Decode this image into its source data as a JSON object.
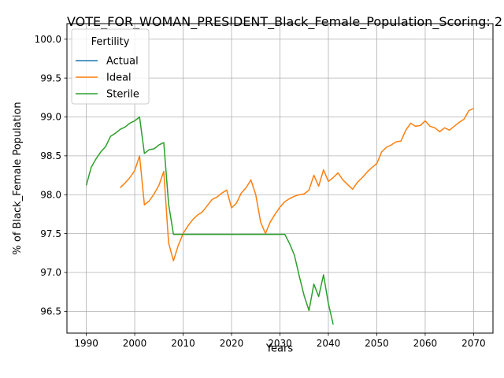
{
  "chart_data": {
    "type": "line",
    "title": "VOTE_FOR_WOMAN_PRESIDENT_Black_Female_Population_Scoring: 2",
    "xlabel": "Years",
    "ylabel": "% of Black_Female Population",
    "xlim": [
      1986,
      2074
    ],
    "ylim": [
      96.22,
      100.2
    ],
    "x_ticks": [
      1990,
      2000,
      2010,
      2020,
      2030,
      2040,
      2050,
      2060,
      2070
    ],
    "y_ticks": [
      96.5,
      97.0,
      97.5,
      98.0,
      98.5,
      99.0,
      99.5,
      100.0
    ],
    "grid": true,
    "legend": {
      "title": "Fertility",
      "placement": "upper-left"
    },
    "series": [
      {
        "name": "Actual",
        "color": "#1f77b4",
        "points": []
      },
      {
        "name": "Ideal",
        "color": "#ff7f0e",
        "points": [
          [
            1997,
            98.09
          ],
          [
            1998,
            98.15
          ],
          [
            1999,
            98.22
          ],
          [
            2000,
            98.31
          ],
          [
            2001,
            98.5
          ],
          [
            2002,
            97.87
          ],
          [
            2003,
            97.92
          ],
          [
            2004,
            98.01
          ],
          [
            2005,
            98.12
          ],
          [
            2006,
            98.3
          ],
          [
            2007,
            97.38
          ],
          [
            2008,
            97.15
          ],
          [
            2009,
            97.35
          ],
          [
            2010,
            97.5
          ],
          [
            2011,
            97.6
          ],
          [
            2012,
            97.68
          ],
          [
            2013,
            97.74
          ],
          [
            2014,
            97.78
          ],
          [
            2015,
            97.86
          ],
          [
            2016,
            97.94
          ],
          [
            2017,
            97.97
          ],
          [
            2018,
            98.02
          ],
          [
            2019,
            98.06
          ],
          [
            2020,
            97.83
          ],
          [
            2021,
            97.89
          ],
          [
            2022,
            98.02
          ],
          [
            2023,
            98.09
          ],
          [
            2024,
            98.19
          ],
          [
            2025,
            98.0
          ],
          [
            2026,
            97.65
          ],
          [
            2027,
            97.5
          ],
          [
            2028,
            97.65
          ],
          [
            2029,
            97.75
          ],
          [
            2030,
            97.84
          ],
          [
            2031,
            97.91
          ],
          [
            2032,
            97.95
          ],
          [
            2033,
            97.98
          ],
          [
            2034,
            98.0
          ],
          [
            2035,
            98.01
          ],
          [
            2036,
            98.06
          ],
          [
            2037,
            98.25
          ],
          [
            2038,
            98.11
          ],
          [
            2039,
            98.32
          ],
          [
            2040,
            98.17
          ],
          [
            2041,
            98.22
          ],
          [
            2042,
            98.28
          ],
          [
            2043,
            98.19
          ],
          [
            2044,
            98.13
          ],
          [
            2045,
            98.07
          ],
          [
            2046,
            98.16
          ],
          [
            2047,
            98.22
          ],
          [
            2048,
            98.29
          ],
          [
            2049,
            98.35
          ],
          [
            2050,
            98.4
          ],
          [
            2051,
            98.55
          ],
          [
            2052,
            98.61
          ],
          [
            2053,
            98.64
          ],
          [
            2054,
            98.68
          ],
          [
            2055,
            98.69
          ],
          [
            2056,
            98.83
          ],
          [
            2057,
            98.92
          ],
          [
            2058,
            98.88
          ],
          [
            2059,
            98.89
          ],
          [
            2060,
            98.95
          ],
          [
            2061,
            98.88
          ],
          [
            2062,
            98.86
          ],
          [
            2063,
            98.81
          ],
          [
            2064,
            98.86
          ],
          [
            2065,
            98.83
          ],
          [
            2066,
            98.88
          ],
          [
            2067,
            98.93
          ],
          [
            2068,
            98.97
          ],
          [
            2069,
            99.08
          ],
          [
            2070,
            99.11
          ]
        ]
      },
      {
        "name": "Sterile",
        "color": "#2ca02c",
        "points": [
          [
            1990,
            98.12
          ],
          [
            1991,
            98.35
          ],
          [
            1992,
            98.46
          ],
          [
            1993,
            98.55
          ],
          [
            1994,
            98.62
          ],
          [
            1995,
            98.75
          ],
          [
            1996,
            98.79
          ],
          [
            1997,
            98.84
          ],
          [
            1998,
            98.87
          ],
          [
            1999,
            98.92
          ],
          [
            2000,
            98.95
          ],
          [
            2001,
            99.0
          ],
          [
            2002,
            98.53
          ],
          [
            2003,
            98.58
          ],
          [
            2004,
            98.59
          ],
          [
            2005,
            98.64
          ],
          [
            2006,
            98.67
          ],
          [
            2007,
            97.88
          ],
          [
            2008,
            97.49
          ],
          [
            2009,
            97.49
          ],
          [
            2010,
            97.49
          ],
          [
            2015,
            97.49
          ],
          [
            2020,
            97.49
          ],
          [
            2025,
            97.49
          ],
          [
            2030,
            97.49
          ],
          [
            2031,
            97.49
          ],
          [
            2032,
            97.37
          ],
          [
            2033,
            97.22
          ],
          [
            2034,
            96.95
          ],
          [
            2035,
            96.7
          ],
          [
            2036,
            96.51
          ],
          [
            2037,
            96.85
          ],
          [
            2038,
            96.69
          ],
          [
            2039,
            96.97
          ],
          [
            2040,
            96.6
          ],
          [
            2041,
            96.33
          ]
        ]
      }
    ]
  }
}
